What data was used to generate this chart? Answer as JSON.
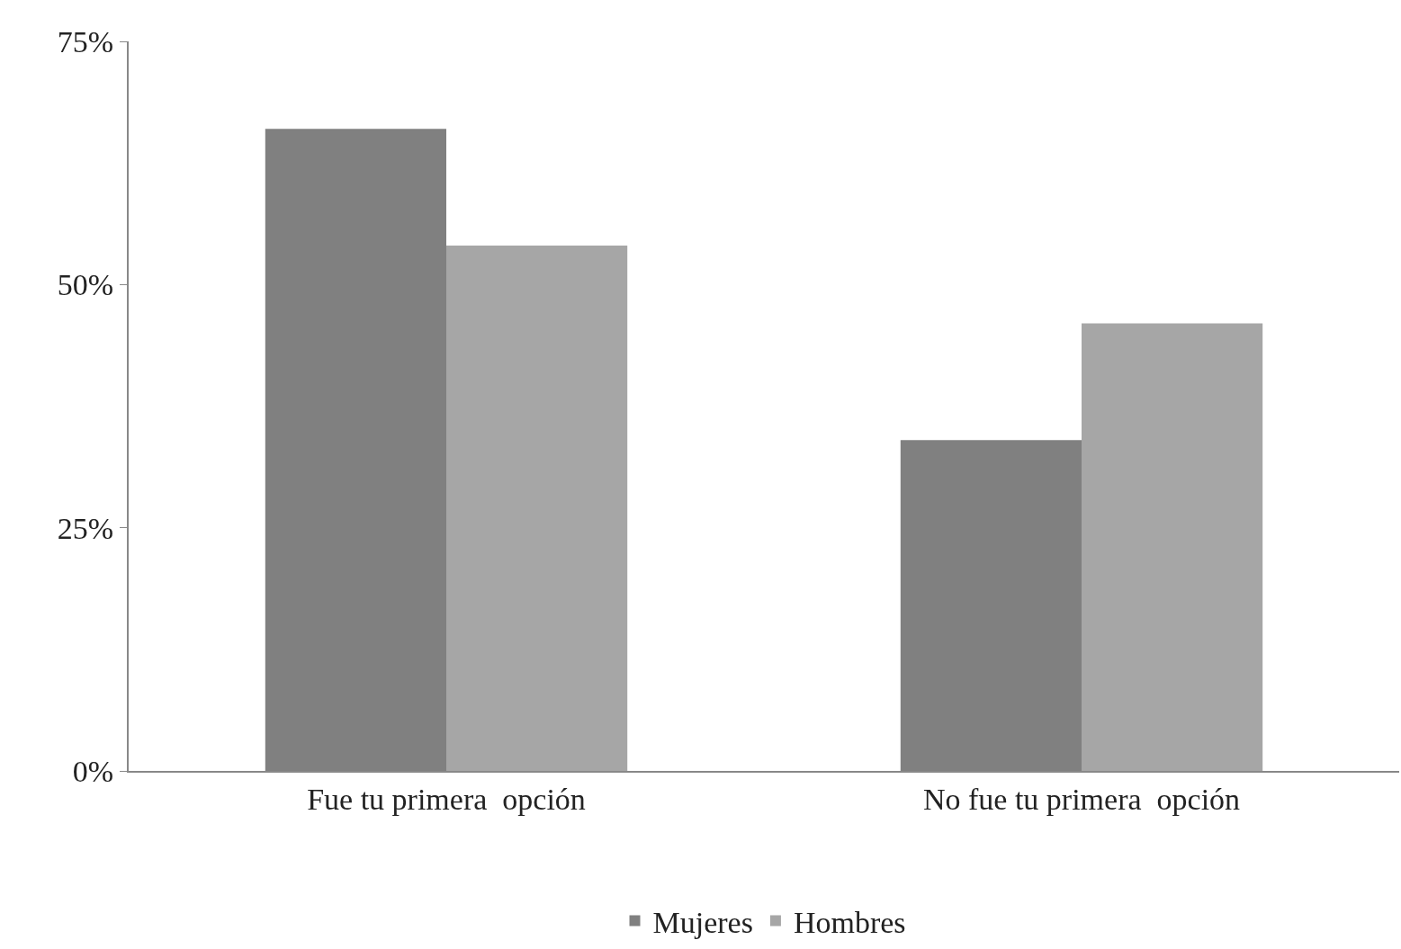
{
  "chart_data": {
    "type": "bar",
    "categories": [
      "Fue tu primera  opción",
      "No fue tu primera  opción"
    ],
    "series": [
      {
        "name": "Mujeres",
        "color": "#808080",
        "values": [
          66,
          34
        ]
      },
      {
        "name": "Hombres",
        "color": "#a6a6a6",
        "values": [
          54,
          46
        ]
      }
    ],
    "ylim": [
      0,
      75
    ],
    "yticks": [
      {
        "value": 0,
        "label": "0%"
      },
      {
        "value": 25,
        "label": "25%"
      },
      {
        "value": 50,
        "label": "50%"
      },
      {
        "value": 75,
        "label": "75%"
      }
    ],
    "grid": false,
    "legend": "bottom"
  }
}
